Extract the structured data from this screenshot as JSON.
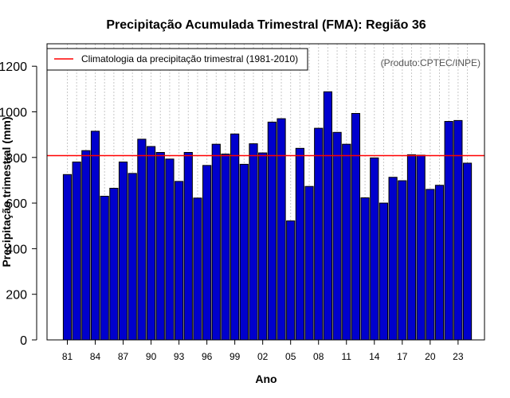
{
  "chart_data": {
    "type": "bar",
    "title": "Precipitação Acumulada Trimestral (FMA): Região 36",
    "xlabel": "Ano",
    "ylabel": "Precipitação trimestral (mm)",
    "ylim": [
      0,
      1300
    ],
    "yticks": [
      0,
      200,
      400,
      600,
      800,
      1000,
      1200
    ],
    "credit": "(Produto:CPTEC/INPE)",
    "x_tick_labels": [
      {
        "index": 0,
        "label": "81"
      },
      {
        "index": 3,
        "label": "84"
      },
      {
        "index": 6,
        "label": "87"
      },
      {
        "index": 9,
        "label": "90"
      },
      {
        "index": 12,
        "label": "93"
      },
      {
        "index": 15,
        "label": "96"
      },
      {
        "index": 18,
        "label": "99"
      },
      {
        "index": 21,
        "label": "02"
      },
      {
        "index": 24,
        "label": "05"
      },
      {
        "index": 27,
        "label": "08"
      },
      {
        "index": 30,
        "label": "11"
      },
      {
        "index": 33,
        "label": "14"
      },
      {
        "index": 36,
        "label": "17"
      },
      {
        "index": 39,
        "label": "20"
      },
      {
        "index": 42,
        "label": "23"
      }
    ],
    "categories": [
      "1981",
      "1982",
      "1983",
      "1984",
      "1985",
      "1986",
      "1987",
      "1988",
      "1989",
      "1990",
      "1991",
      "1992",
      "1993",
      "1994",
      "1995",
      "1996",
      "1997",
      "1998",
      "1999",
      "2000",
      "2001",
      "2002",
      "2003",
      "2004",
      "2005",
      "2006",
      "2007",
      "2008",
      "2009",
      "2010",
      "2011",
      "2012",
      "2013",
      "2014",
      "2015",
      "2016",
      "2017",
      "2018",
      "2019",
      "2020",
      "2021",
      "2022",
      "2023",
      "2024"
    ],
    "values": [
      725,
      780,
      830,
      915,
      630,
      665,
      780,
      730,
      880,
      848,
      822,
      793,
      695,
      822,
      622,
      765,
      858,
      815,
      903,
      770,
      860,
      820,
      955,
      970,
      522,
      840,
      673,
      928,
      1088,
      910,
      858,
      993,
      623,
      798,
      600,
      713,
      698,
      812,
      810,
      660,
      678,
      958,
      962,
      775
    ],
    "bar_color": "#0000cd",
    "climatology": {
      "value": 808,
      "label": "Climatologia da precipitação trimestral (1981-2010)",
      "color": "#ff0000"
    },
    "legend_position": "top-left",
    "grid": "vertical dotted"
  }
}
